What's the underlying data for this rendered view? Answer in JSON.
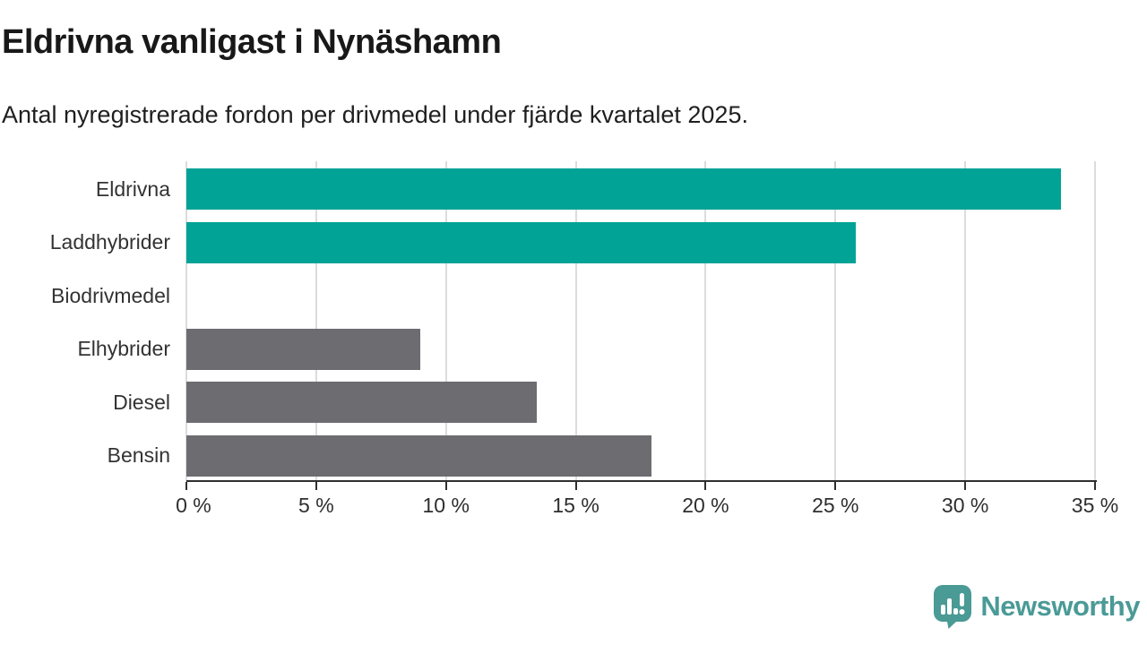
{
  "header": {
    "title": "Eldrivna vanligast i Nynäshamn",
    "subtitle": "Antal nyregistrerade fordon per drivmedel under fjärde kvartalet 2025."
  },
  "chart_data": {
    "type": "bar",
    "orientation": "horizontal",
    "title": "Eldrivna vanligast i Nynäshamn",
    "subtitle": "Antal nyregistrerade fordon per drivmedel under fjärde kvartalet 2025.",
    "categories": [
      "Eldrivna",
      "Laddhybrider",
      "Biodrivmedel",
      "Elhybrider",
      "Diesel",
      "Bensin"
    ],
    "values": [
      33.7,
      25.8,
      0,
      9.0,
      13.5,
      17.9
    ],
    "unit": "%",
    "xlim": [
      0,
      35
    ],
    "x_ticks": [
      0,
      5,
      10,
      15,
      20,
      25,
      30,
      35
    ],
    "x_tick_labels": [
      "0 %",
      "5 %",
      "10 %",
      "15 %",
      "20 %",
      "25 %",
      "30 %",
      "35 %"
    ],
    "grid": true,
    "legend": "none",
    "bar_colors": [
      "#00a396",
      "#00a396",
      "#6c6c71",
      "#6c6c71",
      "#6c6c71",
      "#6c6c71"
    ]
  },
  "colors": {
    "highlight": "#00a396",
    "neutral": "#6c6c71",
    "gridline": "#dcdcdc",
    "axis": "#2f2f2f",
    "logo": "#4a9a96"
  },
  "branding": {
    "logo_text": "Newsworthy"
  }
}
